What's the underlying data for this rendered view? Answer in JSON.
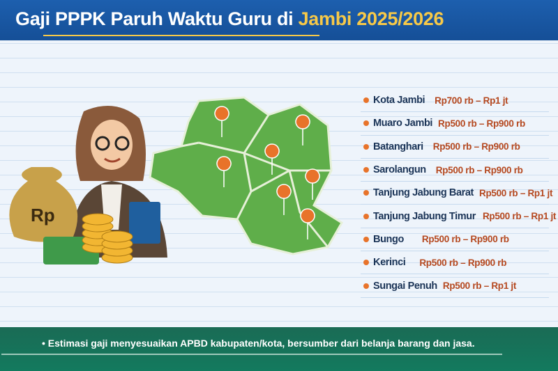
{
  "header": {
    "title_main": "Gaji PPPK Paruh Waktu Guru di",
    "title_highlight": "Jambi 2025/2026"
  },
  "colors": {
    "header": "#1d5fae",
    "highlight": "#f7c948",
    "map": "#5fae4a",
    "pin": "#e8732a",
    "footer": "#137a5e",
    "name": "#1b3457",
    "value": "#b5481f"
  },
  "illustration": {
    "money_bag_label": "Rp",
    "pin_icon": "map-pin-icon"
  },
  "regions": [
    {
      "name": "Kota Jambi",
      "salary": "Rp700 rb – Rp1 jt"
    },
    {
      "name": "Muaro Jambi",
      "salary": "Rp500 rb – Rp900 rb"
    },
    {
      "name": "Batanghari",
      "salary": "Rp500 rb – Rp900 rb"
    },
    {
      "name": "Sarolangun",
      "salary": "Rp500 rb – Rp900 rb"
    },
    {
      "name": "Tanjung Jabung Barat",
      "salary": "Rp500 rb – Rp1 jt"
    },
    {
      "name": "Tanjung Jabung Timur",
      "salary": "Rp500 rb – Rp1 jt"
    },
    {
      "name": "Bungo",
      "salary": "Rp500 rb – Rp900 rb"
    },
    {
      "name": "Kerinci",
      "salary": "Rp500 rb – Rp900 rb"
    },
    {
      "name": "Sungai Penuh",
      "salary": "Rp500 rb – Rp1 jt"
    }
  ],
  "footer": {
    "note": "• Estimasi gaji menyesuaikan APBD kabupaten/kota, bersumber dari belanja barang dan jasa."
  }
}
